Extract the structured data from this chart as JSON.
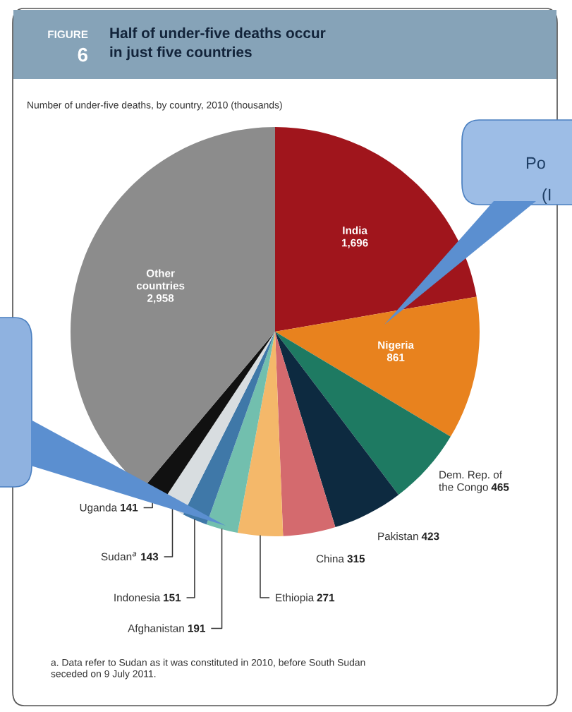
{
  "chart_data": {
    "type": "pie",
    "title": "Half of under-five deaths occur\nin just five countries",
    "subtitle": "Number of under-five deaths, by country, 2010 (thousands)",
    "categories": [
      "India",
      "Nigeria",
      "Dem. Rep. of\nthe Congo",
      "Pakistan",
      "China",
      "Ethiopia",
      "Afghanistan",
      "Indonesia",
      "Sudan$^{a}$",
      "Uganda",
      "Other\ncountries"
    ],
    "values": [
      1696,
      861,
      465,
      423,
      315,
      271,
      191,
      151,
      143,
      141,
      2958
    ],
    "value_labels": [
      "1,696",
      "861",
      "465",
      "423",
      "315",
      "271",
      "191",
      "151",
      "143",
      "141",
      "2,958"
    ],
    "colors": [
      "#a0151c",
      "#e8821e",
      "#1e7a62",
      "#0d2a40",
      "#d46a6e",
      "#f4b86a",
      "#72bfae",
      "#3f78a8",
      "#d8dde0",
      "#111111",
      "#8c8c8c"
    ],
    "annotations": [
      "FIGURE",
      "6",
      "a. Data refer to Sudan as it was constituted in 2010, before South Sudan\nseceded on 9 July 2011.",
      "Po",
      "(I"
    ]
  }
}
